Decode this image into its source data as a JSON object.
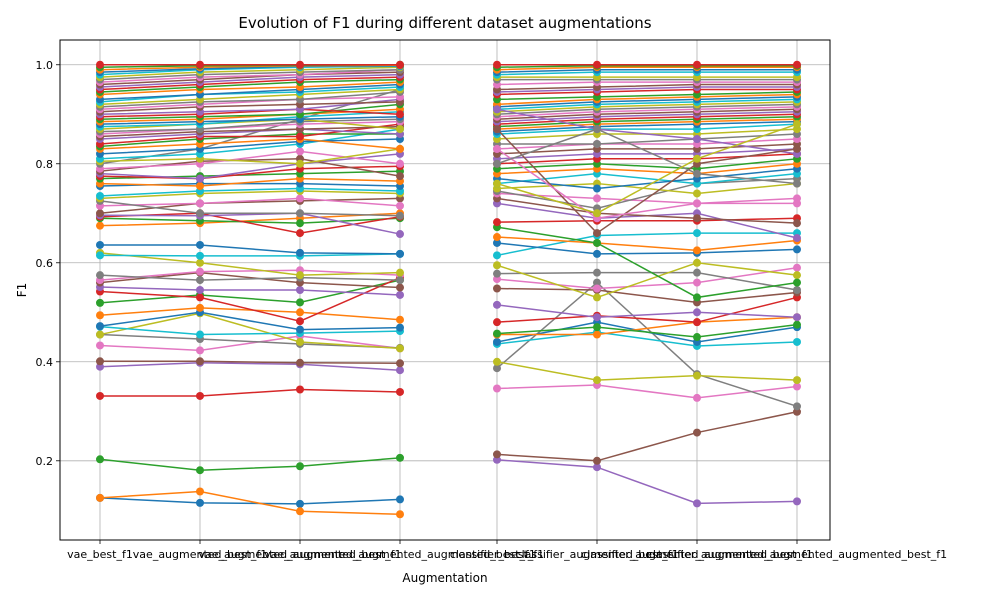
{
  "chart_data": {
    "type": "line",
    "title": "Evolution of F1 during different dataset augmentations",
    "xlabel": "Augmentation",
    "ylabel": "F1",
    "ylim": [
      0.04,
      1.05
    ],
    "grid": true,
    "categories": [
      "vae_best_f1",
      "vae_augmented_best_f1",
      "vae_augmented_augmented_best_f1",
      "vae_augmented_augmented_augmented_best_f1",
      "classifier_best_f1",
      "classifier_augmented_best_f1",
      "classifier_augmented_augmented_best_f1",
      "classifier_augmented_augmented_augmented_best_f1"
    ],
    "y_ticks": [
      0.2,
      0.4,
      0.6,
      0.8,
      1.0
    ],
    "y_tick_labels": [
      "0.2",
      "0.4",
      "0.6",
      "0.8",
      "1.0"
    ],
    "colors": [
      "#1f77b4",
      "#ff7f0e",
      "#2ca02c",
      "#d62728",
      "#9467bd",
      "#8c564b",
      "#e377c2",
      "#7f7f7f",
      "#bcbd22",
      "#17becf"
    ],
    "groups": [
      {
        "series": [
          [
            0.125,
            0.115,
            0.113,
            0.122
          ],
          [
            0.125,
            0.138,
            0.098,
            0.092
          ],
          [
            0.203,
            0.181,
            0.189,
            0.206
          ],
          [
            0.331,
            0.331,
            0.344,
            0.339
          ],
          [
            0.39,
            0.398,
            0.395,
            0.383
          ],
          [
            0.401,
            0.401,
            0.398,
            0.397
          ],
          [
            0.433,
            0.423,
            0.452,
            0.427
          ],
          [
            0.455,
            0.446,
            0.436,
            0.428
          ],
          [
            0.455,
            0.498,
            0.44,
            0.427
          ],
          [
            0.471,
            0.455,
            0.458,
            0.462
          ],
          [
            0.472,
            0.5,
            0.465,
            0.469
          ],
          [
            0.494,
            0.509,
            0.5,
            0.485
          ],
          [
            0.519,
            0.535,
            0.52,
            0.565
          ],
          [
            0.542,
            0.53,
            0.482,
            0.57
          ],
          [
            0.551,
            0.545,
            0.545,
            0.535
          ],
          [
            0.56,
            0.58,
            0.56,
            0.55
          ],
          [
            0.565,
            0.582,
            0.585,
            0.575
          ],
          [
            0.575,
            0.565,
            0.57,
            0.565
          ],
          [
            0.62,
            0.6,
            0.575,
            0.58
          ],
          [
            0.615,
            0.614,
            0.614,
            0.618
          ],
          [
            0.636,
            0.636,
            0.62,
            0.618
          ],
          [
            0.675,
            0.68,
            0.69,
            0.7
          ],
          [
            0.69,
            0.685,
            0.68,
            0.69
          ],
          [
            0.693,
            0.7,
            0.66,
            0.693
          ],
          [
            0.696,
            0.695,
            0.7,
            0.658
          ],
          [
            0.7,
            0.72,
            0.725,
            0.73
          ],
          [
            0.715,
            0.72,
            0.73,
            0.715
          ],
          [
            0.725,
            0.7,
            0.7,
            0.695
          ],
          [
            0.73,
            0.74,
            0.745,
            0.74
          ],
          [
            0.735,
            0.745,
            0.75,
            0.745
          ],
          [
            0.755,
            0.76,
            0.76,
            0.755
          ],
          [
            0.76,
            0.755,
            0.77,
            0.765
          ],
          [
            0.77,
            0.775,
            0.78,
            0.785
          ],
          [
            0.775,
            0.77,
            0.79,
            0.795
          ],
          [
            0.78,
            0.77,
            0.8,
            0.82
          ],
          [
            0.785,
            0.805,
            0.81,
            0.775
          ],
          [
            0.79,
            0.8,
            0.825,
            0.8
          ],
          [
            0.8,
            0.83,
            0.89,
            0.95
          ],
          [
            0.805,
            0.81,
            0.8,
            0.83
          ],
          [
            0.81,
            0.82,
            0.84,
            0.87
          ],
          [
            0.82,
            0.83,
            0.845,
            0.85
          ],
          [
            0.83,
            0.84,
            0.85,
            0.83
          ],
          [
            0.835,
            0.85,
            0.86,
            0.86
          ],
          [
            0.84,
            0.855,
            0.855,
            0.88
          ],
          [
            0.85,
            0.86,
            0.87,
            0.86
          ],
          [
            0.855,
            0.865,
            0.87,
            0.875
          ],
          [
            0.86,
            0.87,
            0.88,
            0.885
          ],
          [
            0.865,
            0.87,
            0.885,
            0.89
          ],
          [
            0.87,
            0.88,
            0.89,
            0.87
          ],
          [
            0.875,
            0.88,
            0.895,
            0.905
          ],
          [
            0.88,
            0.885,
            0.89,
            0.895
          ],
          [
            0.885,
            0.89,
            0.9,
            0.91
          ],
          [
            0.89,
            0.895,
            0.9,
            0.92
          ],
          [
            0.895,
            0.9,
            0.91,
            0.9
          ],
          [
            0.9,
            0.905,
            0.91,
            0.93
          ],
          [
            0.905,
            0.915,
            0.92,
            0.925
          ],
          [
            0.91,
            0.92,
            0.93,
            0.935
          ],
          [
            0.915,
            0.925,
            0.93,
            0.945
          ],
          [
            0.92,
            0.93,
            0.94,
            0.95
          ],
          [
            0.925,
            0.94,
            0.945,
            0.955
          ],
          [
            0.93,
            0.94,
            0.95,
            0.96
          ],
          [
            0.94,
            0.95,
            0.955,
            0.965
          ],
          [
            0.945,
            0.955,
            0.965,
            0.97
          ],
          [
            0.95,
            0.96,
            0.97,
            0.975
          ],
          [
            0.955,
            0.965,
            0.975,
            0.98
          ],
          [
            0.96,
            0.97,
            0.98,
            0.985
          ],
          [
            0.965,
            0.975,
            0.98,
            0.99
          ],
          [
            0.97,
            0.98,
            0.985,
            0.99
          ],
          [
            0.975,
            0.985,
            0.99,
            0.995
          ],
          [
            0.98,
            0.99,
            0.995,
            0.997
          ],
          [
            0.985,
            0.992,
            0.997,
            0.998
          ],
          [
            0.99,
            0.995,
            0.998,
            0.999
          ],
          [
            0.995,
            0.998,
            0.999,
            1.0
          ],
          [
            1.0,
            1.0,
            1.0,
            1.0
          ]
        ]
      },
      {
        "series": [
          [
            0.202,
            0.187,
            0.114,
            0.118
          ],
          [
            0.213,
            0.2,
            0.257,
            0.299
          ],
          [
            0.346,
            0.353,
            0.327,
            0.35
          ],
          [
            0.387,
            0.56,
            0.375,
            0.31
          ],
          [
            0.4,
            0.363,
            0.372,
            0.363
          ],
          [
            0.436,
            0.46,
            0.432,
            0.44
          ],
          [
            0.44,
            0.48,
            0.44,
            0.47
          ],
          [
            0.455,
            0.455,
            0.48,
            0.49
          ],
          [
            0.457,
            0.47,
            0.45,
            0.475
          ],
          [
            0.48,
            0.493,
            0.48,
            0.53
          ],
          [
            0.515,
            0.49,
            0.5,
            0.49
          ],
          [
            0.548,
            0.545,
            0.52,
            0.54
          ],
          [
            0.567,
            0.548,
            0.56,
            0.59
          ],
          [
            0.578,
            0.58,
            0.58,
            0.545
          ],
          [
            0.595,
            0.53,
            0.6,
            0.575
          ],
          [
            0.615,
            0.655,
            0.66,
            0.66
          ],
          [
            0.64,
            0.618,
            0.62,
            0.627
          ],
          [
            0.652,
            0.64,
            0.625,
            0.645
          ],
          [
            0.672,
            0.64,
            0.53,
            0.56
          ],
          [
            0.682,
            0.685,
            0.685,
            0.69
          ],
          [
            0.72,
            0.69,
            0.7,
            0.65
          ],
          [
            0.73,
            0.7,
            0.69,
            0.68
          ],
          [
            0.74,
            0.73,
            0.72,
            0.73
          ],
          [
            0.745,
            0.71,
            0.76,
            0.77
          ],
          [
            0.75,
            0.76,
            0.74,
            0.76
          ],
          [
            0.76,
            0.78,
            0.76,
            0.78
          ],
          [
            0.77,
            0.75,
            0.77,
            0.79
          ],
          [
            0.78,
            0.79,
            0.78,
            0.8
          ],
          [
            0.79,
            0.8,
            0.79,
            0.81
          ],
          [
            0.8,
            0.81,
            0.81,
            0.82
          ],
          [
            0.81,
            0.82,
            0.82,
            0.83
          ],
          [
            0.82,
            0.83,
            0.83,
            0.84
          ],
          [
            0.83,
            0.84,
            0.84,
            0.85
          ],
          [
            0.84,
            0.84,
            0.85,
            0.86
          ],
          [
            0.85,
            0.86,
            0.86,
            0.87
          ],
          [
            0.86,
            0.87,
            0.87,
            0.88
          ],
          [
            0.865,
            0.875,
            0.88,
            0.885
          ],
          [
            0.87,
            0.88,
            0.885,
            0.89
          ],
          [
            0.875,
            0.885,
            0.89,
            0.895
          ],
          [
            0.88,
            0.89,
            0.895,
            0.9
          ],
          [
            0.885,
            0.895,
            0.9,
            0.905
          ],
          [
            0.89,
            0.9,
            0.905,
            0.91
          ],
          [
            0.895,
            0.905,
            0.91,
            0.915
          ],
          [
            0.9,
            0.91,
            0.915,
            0.92
          ],
          [
            0.905,
            0.915,
            0.92,
            0.925
          ],
          [
            0.91,
            0.92,
            0.925,
            0.93
          ],
          [
            0.915,
            0.925,
            0.93,
            0.935
          ],
          [
            0.92,
            0.93,
            0.935,
            0.94
          ],
          [
            0.93,
            0.935,
            0.94,
            0.945
          ],
          [
            0.94,
            0.945,
            0.95,
            0.95
          ],
          [
            0.945,
            0.95,
            0.955,
            0.955
          ],
          [
            0.95,
            0.955,
            0.96,
            0.96
          ],
          [
            0.96,
            0.965,
            0.965,
            0.965
          ],
          [
            0.97,
            0.97,
            0.97,
            0.97
          ],
          [
            0.975,
            0.975,
            0.975,
            0.975
          ],
          [
            0.98,
            0.985,
            0.985,
            0.985
          ],
          [
            0.985,
            0.99,
            0.99,
            0.99
          ],
          [
            0.99,
            0.995,
            0.995,
            0.995
          ],
          [
            0.995,
            0.998,
            0.998,
            0.998
          ],
          [
            1.0,
            1.0,
            1.0,
            1.0
          ],
          [
            0.91,
            0.87,
            0.85,
            0.82
          ],
          [
            0.87,
            0.66,
            0.8,
            0.83
          ],
          [
            0.83,
            0.69,
            0.72,
            0.72
          ],
          [
            0.8,
            0.87,
            0.78,
            0.76
          ],
          [
            0.76,
            0.7,
            0.81,
            0.88
          ]
        ]
      }
    ]
  }
}
